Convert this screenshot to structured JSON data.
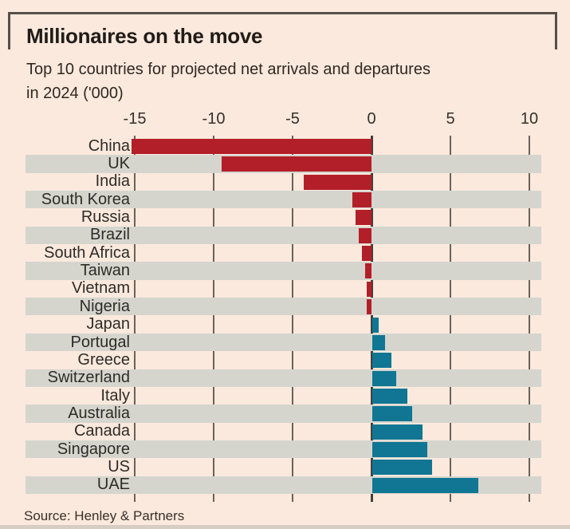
{
  "header": {
    "title": "Millionaires on the move",
    "subtitle_line1": "Top 10 countries for projected net arrivals and departures",
    "subtitle_line2": "in 2024 ('000)"
  },
  "footer": {
    "source": "Source: Henley & Partners"
  },
  "colors": {
    "background": "#fbe9dd",
    "frame_border": "#57504a",
    "row_stripe_gray": "#d5d5ce",
    "gridline": "#6a625c",
    "zero_line": "#45403a",
    "text_dark": "#2f2b27"
  },
  "chart_data": {
    "type": "bar",
    "orientation": "horizontal",
    "title": "Millionaires on the move",
    "subtitle": "Top 10 countries for projected net arrivals and departures in 2024 ('000)",
    "categories": [
      "China",
      "UK",
      "India",
      "South Korea",
      "Russia",
      "Brazil",
      "South Africa",
      "Taiwan",
      "Vietnam",
      "Nigeria",
      "Japan",
      "Portugal",
      "Greece",
      "Switzerland",
      "Italy",
      "Australia",
      "Canada",
      "Singapore",
      "US",
      "UAE"
    ],
    "values": [
      -15.2,
      -9.5,
      -4.3,
      -1.2,
      -1.0,
      -0.8,
      -0.6,
      -0.4,
      -0.3,
      -0.3,
      0.4,
      0.8,
      1.2,
      1.5,
      2.2,
      2.5,
      3.2,
      3.5,
      3.8,
      6.7
    ],
    "x_ticks": [
      -15,
      -10,
      -5,
      0,
      5,
      10
    ],
    "xlim": [
      -15.5,
      10.5
    ],
    "negative_color": "#b21f28",
    "positive_color": "#107693",
    "grid": "vertical",
    "legend": "none",
    "source": "Source: Henley & Partners"
  }
}
